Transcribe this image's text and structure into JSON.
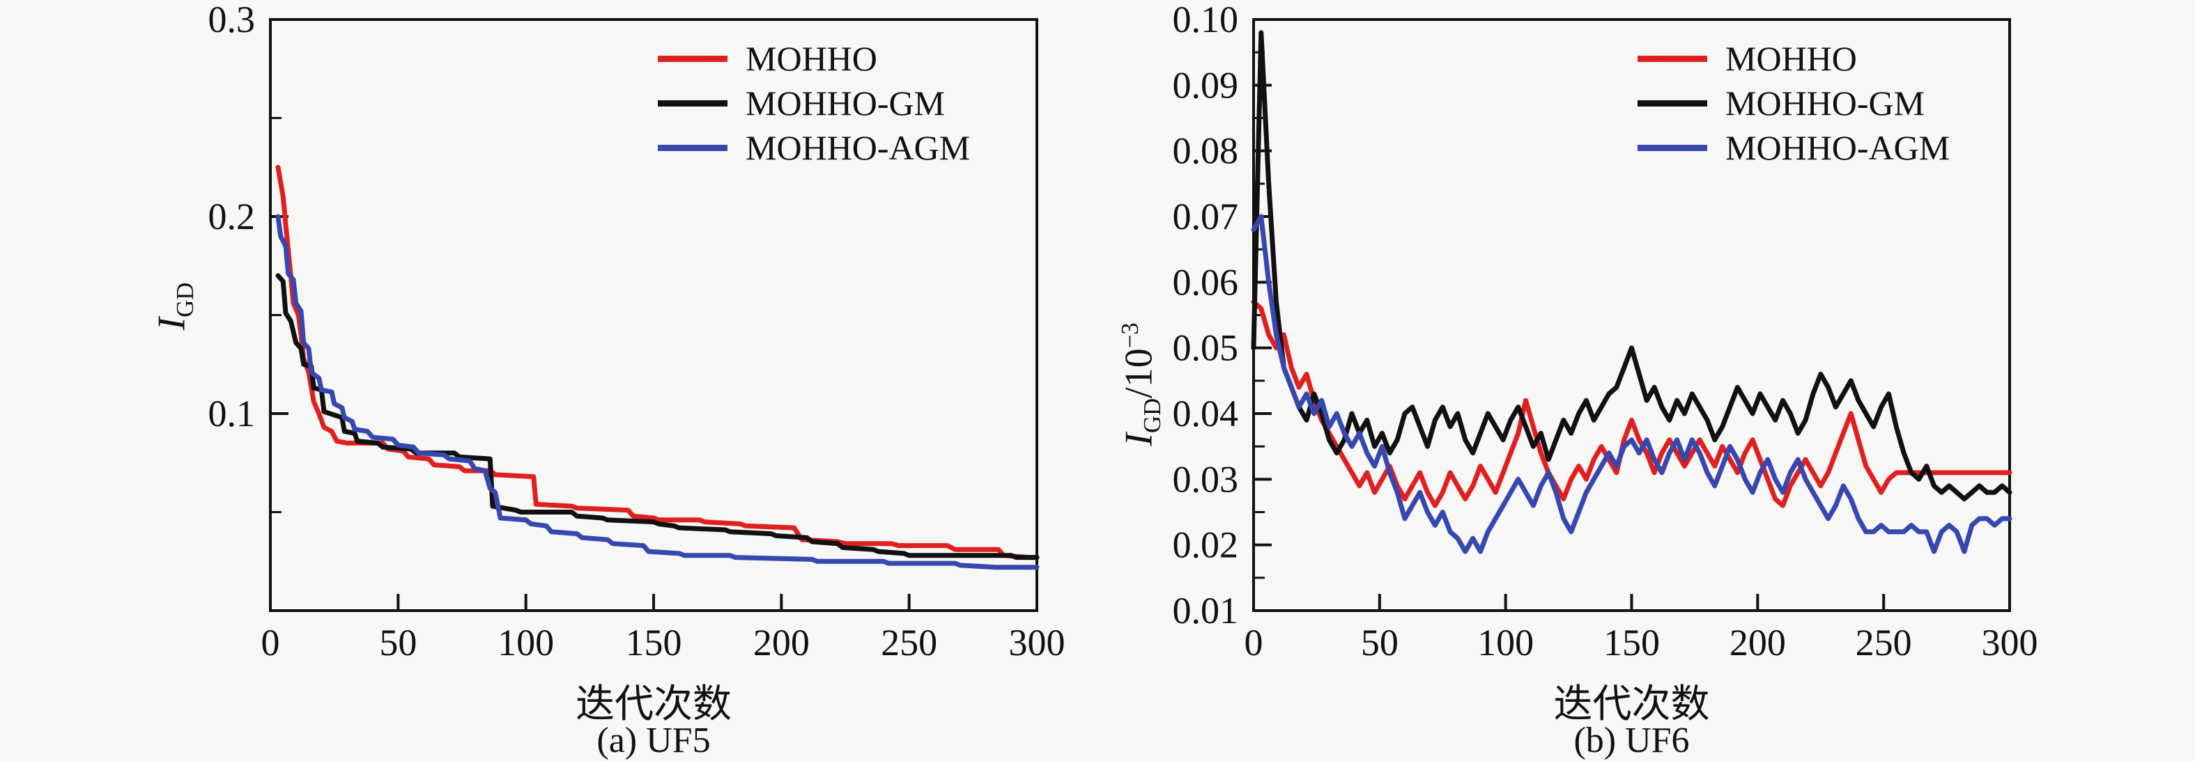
{
  "figure": {
    "background": "#f7f7f5",
    "axis_color": "#111111",
    "text_color": "#111111",
    "series_colors": {
      "MOHHO": "#e02020",
      "MOHHO-GM": "#111111",
      "MOHHO-AGM": "#3747b0"
    }
  },
  "chart_data": [
    {
      "type": "line",
      "title": "(a) UF5",
      "xlabel": "迭代次数",
      "ylabel": "IGD",
      "ylabel_parts": {
        "main": "I",
        "sub": "GD",
        "rest": "",
        "sup": ""
      },
      "xlim": [
        0,
        300
      ],
      "ylim": [
        0,
        0.3
      ],
      "xticks": [
        0,
        50,
        100,
        150,
        200,
        250,
        300
      ],
      "xtick_labels": [
        "0",
        "50",
        "100",
        "150",
        "200",
        "250",
        "300"
      ],
      "yticks": [
        0.1,
        0.2,
        0.3
      ],
      "ytick_labels": [
        "0.1",
        "0.2",
        "0.3"
      ],
      "y_minor_step": 0.05,
      "grid": false,
      "legend_position": "upper right inside",
      "series": [
        {
          "name": "MOHHO",
          "color": "#e02020",
          "points": [
            [
              3,
              0.225
            ],
            [
              5,
              0.21
            ],
            [
              6,
              0.196
            ],
            [
              8,
              0.17
            ],
            [
              9,
              0.156
            ],
            [
              11,
              0.15
            ],
            [
              12,
              0.14
            ],
            [
              13,
              0.128
            ],
            [
              15,
              0.121
            ],
            [
              17,
              0.106
            ],
            [
              19,
              0.1
            ],
            [
              21,
              0.093
            ],
            [
              24,
              0.091
            ],
            [
              26,
              0.086
            ],
            [
              30,
              0.085
            ],
            [
              44,
              0.085
            ],
            [
              46,
              0.082
            ],
            [
              52,
              0.081
            ],
            [
              54,
              0.078
            ],
            [
              62,
              0.077
            ],
            [
              64,
              0.074
            ],
            [
              74,
              0.073
            ],
            [
              76,
              0.071
            ],
            [
              86,
              0.071
            ],
            [
              88,
              0.069
            ],
            [
              103,
              0.068
            ],
            [
              104,
              0.054
            ],
            [
              118,
              0.053
            ],
            [
              120,
              0.052
            ],
            [
              140,
              0.051
            ],
            [
              142,
              0.048
            ],
            [
              150,
              0.047
            ],
            [
              152,
              0.046
            ],
            [
              168,
              0.046
            ],
            [
              170,
              0.045
            ],
            [
              184,
              0.044
            ],
            [
              186,
              0.043
            ],
            [
              205,
              0.042
            ],
            [
              208,
              0.036
            ],
            [
              222,
              0.035
            ],
            [
              225,
              0.034
            ],
            [
              243,
              0.034
            ],
            [
              246,
              0.033
            ],
            [
              265,
              0.033
            ],
            [
              268,
              0.031
            ],
            [
              285,
              0.031
            ],
            [
              287,
              0.028
            ],
            [
              297,
              0.027
            ],
            [
              300,
              0.027
            ]
          ]
        },
        {
          "name": "MOHHO-GM",
          "color": "#111111",
          "points": [
            [
              3,
              0.17
            ],
            [
              5,
              0.167
            ],
            [
              6,
              0.151
            ],
            [
              8,
              0.147
            ],
            [
              10,
              0.136
            ],
            [
              12,
              0.133
            ],
            [
              13,
              0.125
            ],
            [
              16,
              0.124
            ],
            [
              17,
              0.113
            ],
            [
              20,
              0.112
            ],
            [
              21,
              0.101
            ],
            [
              28,
              0.098
            ],
            [
              29,
              0.091
            ],
            [
              33,
              0.09
            ],
            [
              34,
              0.086
            ],
            [
              42,
              0.085
            ],
            [
              44,
              0.083
            ],
            [
              55,
              0.082
            ],
            [
              57,
              0.08
            ],
            [
              72,
              0.08
            ],
            [
              74,
              0.078
            ],
            [
              86,
              0.077
            ],
            [
              87,
              0.053
            ],
            [
              96,
              0.051
            ],
            [
              98,
              0.05
            ],
            [
              118,
              0.05
            ],
            [
              120,
              0.048
            ],
            [
              130,
              0.047
            ],
            [
              132,
              0.046
            ],
            [
              150,
              0.045
            ],
            [
              152,
              0.044
            ],
            [
              158,
              0.043
            ],
            [
              160,
              0.042
            ],
            [
              178,
              0.041
            ],
            [
              180,
              0.04
            ],
            [
              196,
              0.039
            ],
            [
              198,
              0.038
            ],
            [
              210,
              0.037
            ],
            [
              212,
              0.035
            ],
            [
              222,
              0.034
            ],
            [
              224,
              0.032
            ],
            [
              236,
              0.031
            ],
            [
              238,
              0.03
            ],
            [
              248,
              0.029
            ],
            [
              250,
              0.028
            ],
            [
              290,
              0.028
            ],
            [
              292,
              0.027
            ],
            [
              300,
              0.027
            ]
          ]
        },
        {
          "name": "MOHHO-AGM",
          "color": "#3747b0",
          "points": [
            [
              3,
              0.2
            ],
            [
              4,
              0.19
            ],
            [
              6,
              0.185
            ],
            [
              7,
              0.171
            ],
            [
              9,
              0.168
            ],
            [
              10,
              0.156
            ],
            [
              12,
              0.152
            ],
            [
              13,
              0.136
            ],
            [
              15,
              0.133
            ],
            [
              16,
              0.121
            ],
            [
              19,
              0.118
            ],
            [
              20,
              0.112
            ],
            [
              24,
              0.111
            ],
            [
              25,
              0.105
            ],
            [
              28,
              0.103
            ],
            [
              29,
              0.098
            ],
            [
              32,
              0.096
            ],
            [
              33,
              0.092
            ],
            [
              38,
              0.091
            ],
            [
              40,
              0.088
            ],
            [
              48,
              0.087
            ],
            [
              50,
              0.084
            ],
            [
              56,
              0.083
            ],
            [
              58,
              0.08
            ],
            [
              68,
              0.079
            ],
            [
              70,
              0.077
            ],
            [
              78,
              0.076
            ],
            [
              80,
              0.072
            ],
            [
              84,
              0.071
            ],
            [
              86,
              0.062
            ],
            [
              88,
              0.06
            ],
            [
              90,
              0.047
            ],
            [
              100,
              0.046
            ],
            [
              102,
              0.044
            ],
            [
              108,
              0.043
            ],
            [
              110,
              0.04
            ],
            [
              120,
              0.039
            ],
            [
              122,
              0.037
            ],
            [
              132,
              0.036
            ],
            [
              134,
              0.034
            ],
            [
              146,
              0.033
            ],
            [
              148,
              0.03
            ],
            [
              160,
              0.029
            ],
            [
              162,
              0.028
            ],
            [
              180,
              0.028
            ],
            [
              182,
              0.027
            ],
            [
              212,
              0.026
            ],
            [
              214,
              0.025
            ],
            [
              240,
              0.025
            ],
            [
              242,
              0.024
            ],
            [
              268,
              0.024
            ],
            [
              270,
              0.023
            ],
            [
              284,
              0.022
            ],
            [
              300,
              0.022
            ]
          ]
        }
      ]
    },
    {
      "type": "line",
      "title": "(b) UF6",
      "xlabel": "迭代次数",
      "ylabel": "IGD/10−3",
      "ylabel_parts": {
        "main": "I",
        "sub": "GD",
        "rest": "/10",
        "sup": "−3"
      },
      "xlim": [
        0,
        300
      ],
      "ylim": [
        0.01,
        0.1
      ],
      "xticks": [
        0,
        50,
        100,
        150,
        200,
        250,
        300
      ],
      "xtick_labels": [
        "0",
        "50",
        "100",
        "150",
        "200",
        "250",
        "300"
      ],
      "yticks": [
        0.01,
        0.02,
        0.03,
        0.04,
        0.05,
        0.06,
        0.07,
        0.08,
        0.09,
        0.1
      ],
      "ytick_labels": [
        "0.01",
        "0.02",
        "0.03",
        "0.04",
        "0.05",
        "0.06",
        "0.07",
        "0.08",
        "0.09",
        "0.10"
      ],
      "y_minor_step": 0.005,
      "grid": false,
      "legend_position": "upper right inside",
      "x_start": 0,
      "x_step": 3,
      "series": [
        {
          "name": "MOHHO",
          "color": "#e02020",
          "values": [
            0.057,
            0.056,
            0.052,
            0.05,
            0.052,
            0.047,
            0.044,
            0.046,
            0.042,
            0.039,
            0.037,
            0.035,
            0.033,
            0.031,
            0.029,
            0.031,
            0.028,
            0.03,
            0.032,
            0.029,
            0.027,
            0.029,
            0.031,
            0.028,
            0.026,
            0.028,
            0.031,
            0.029,
            0.027,
            0.029,
            0.032,
            0.03,
            0.028,
            0.031,
            0.034,
            0.037,
            0.042,
            0.038,
            0.034,
            0.031,
            0.029,
            0.027,
            0.03,
            0.032,
            0.03,
            0.033,
            0.035,
            0.033,
            0.031,
            0.036,
            0.039,
            0.036,
            0.034,
            0.031,
            0.034,
            0.036,
            0.034,
            0.032,
            0.034,
            0.036,
            0.034,
            0.032,
            0.035,
            0.033,
            0.031,
            0.034,
            0.036,
            0.033,
            0.03,
            0.027,
            0.026,
            0.029,
            0.031,
            0.033,
            0.031,
            0.029,
            0.031,
            0.034,
            0.037,
            0.04,
            0.036,
            0.032,
            0.03,
            0.028,
            0.03,
            0.031,
            0.031,
            0.031,
            0.031,
            0.031,
            0.031,
            0.031,
            0.031,
            0.031,
            0.031,
            0.031,
            0.031,
            0.031,
            0.031,
            0.031,
            0.031
          ]
        },
        {
          "name": "MOHHO-GM",
          "color": "#111111",
          "values": [
            0.05,
            0.098,
            0.075,
            0.057,
            0.047,
            0.044,
            0.041,
            0.039,
            0.043,
            0.04,
            0.036,
            0.034,
            0.036,
            0.04,
            0.037,
            0.039,
            0.035,
            0.037,
            0.034,
            0.036,
            0.04,
            0.041,
            0.038,
            0.035,
            0.039,
            0.041,
            0.038,
            0.04,
            0.036,
            0.034,
            0.037,
            0.04,
            0.038,
            0.036,
            0.039,
            0.041,
            0.038,
            0.035,
            0.037,
            0.033,
            0.036,
            0.039,
            0.037,
            0.04,
            0.042,
            0.039,
            0.041,
            0.043,
            0.044,
            0.047,
            0.05,
            0.046,
            0.042,
            0.044,
            0.041,
            0.039,
            0.042,
            0.04,
            0.043,
            0.041,
            0.039,
            0.036,
            0.038,
            0.041,
            0.044,
            0.042,
            0.04,
            0.043,
            0.041,
            0.039,
            0.042,
            0.04,
            0.037,
            0.039,
            0.043,
            0.046,
            0.044,
            0.041,
            0.043,
            0.045,
            0.042,
            0.04,
            0.038,
            0.041,
            0.043,
            0.038,
            0.034,
            0.031,
            0.03,
            0.032,
            0.029,
            0.028,
            0.029,
            0.028,
            0.027,
            0.028,
            0.029,
            0.028,
            0.028,
            0.029,
            0.028
          ]
        },
        {
          "name": "MOHHO-AGM",
          "color": "#3747b0",
          "values": [
            0.068,
            0.07,
            0.06,
            0.052,
            0.047,
            0.044,
            0.041,
            0.043,
            0.04,
            0.042,
            0.038,
            0.04,
            0.037,
            0.035,
            0.037,
            0.034,
            0.032,
            0.035,
            0.031,
            0.028,
            0.024,
            0.026,
            0.028,
            0.025,
            0.023,
            0.025,
            0.022,
            0.021,
            0.019,
            0.021,
            0.019,
            0.022,
            0.024,
            0.026,
            0.028,
            0.03,
            0.028,
            0.026,
            0.029,
            0.031,
            0.028,
            0.024,
            0.022,
            0.025,
            0.028,
            0.03,
            0.032,
            0.034,
            0.032,
            0.035,
            0.036,
            0.034,
            0.036,
            0.033,
            0.031,
            0.034,
            0.036,
            0.033,
            0.036,
            0.034,
            0.031,
            0.029,
            0.032,
            0.035,
            0.033,
            0.03,
            0.028,
            0.031,
            0.033,
            0.03,
            0.028,
            0.031,
            0.033,
            0.03,
            0.028,
            0.026,
            0.024,
            0.026,
            0.029,
            0.027,
            0.024,
            0.022,
            0.022,
            0.023,
            0.022,
            0.022,
            0.022,
            0.023,
            0.022,
            0.022,
            0.019,
            0.022,
            0.023,
            0.022,
            0.019,
            0.023,
            0.024,
            0.024,
            0.023,
            0.024,
            0.024
          ]
        }
      ]
    }
  ]
}
